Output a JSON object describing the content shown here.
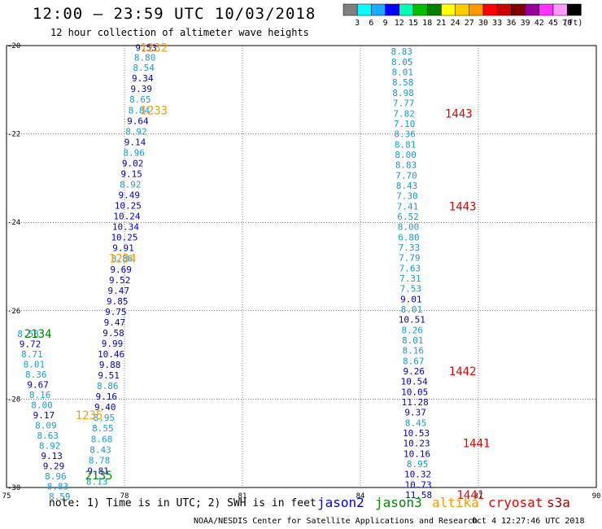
{
  "title": "12:00 — 23:59 UTC 10/03/2018",
  "subtitle": "12 hour collection of altimeter wave heights",
  "legend": {
    "labels": [
      "3",
      "6",
      "9",
      "12",
      "15",
      "18",
      "21",
      "24",
      "27",
      "30",
      "33",
      "36",
      "39",
      "42",
      "45",
      "70"
    ],
    "unit": "(ft)",
    "colors": [
      "#7f7f7f",
      "#00ffff",
      "#1aa9ff",
      "#0000ff",
      "#00ffb0",
      "#00c000",
      "#008000",
      "#ffff00",
      "#ffcc00",
      "#ff9900",
      "#ff0000",
      "#cc0000",
      "#800000",
      "#990099",
      "#ff33ff",
      "#ff99ff",
      "#000000"
    ]
  },
  "note": "note: 1) Time is in UTC; 2) SWH is in feet",
  "satellites": [
    {
      "name": "jason2",
      "color": "#0000ee"
    },
    {
      "name": "jason3",
      "color": "#008800"
    },
    {
      "name": "altika",
      "color": "#ff9900"
    },
    {
      "name": "cryosat",
      "color": "#ee0000"
    },
    {
      "name": "s3a",
      "color": "#aa0000"
    }
  ],
  "credit": "NOAA/NESDIS Center for Satellite Applications and Research",
  "credit_time": "Oct  4 12:27:46 UTC 2018",
  "chart_data": {
    "type": "scatter",
    "xlim": [
      75,
      90
    ],
    "ylim": [
      -30,
      -20
    ],
    "xticks": [
      75,
      78,
      81,
      84,
      87,
      90
    ],
    "yticks": [
      -20,
      -22,
      -24,
      -26,
      -28,
      -30
    ],
    "xtick_labels": [
      "75",
      "78",
      "81",
      "84",
      "87",
      "90"
    ],
    "ytick_labels": [
      "-20",
      "-22",
      "-24",
      "-26",
      "-28",
      "-30"
    ],
    "grid": true,
    "points": [
      {
        "x": 78.55,
        "y": -20.05,
        "v": "9.53",
        "c": "#0000cc"
      },
      {
        "x": 78.52,
        "y": -20.27,
        "v": "8.80",
        "c": "#1a9ad6"
      },
      {
        "x": 78.49,
        "y": -20.5,
        "v": "8.54",
        "c": "#1a9ad6"
      },
      {
        "x": 78.46,
        "y": -20.74,
        "v": "9.34",
        "c": "#0000cc"
      },
      {
        "x": 78.43,
        "y": -20.98,
        "v": "9.39",
        "c": "#0000cc"
      },
      {
        "x": 78.4,
        "y": -21.22,
        "v": "8.65",
        "c": "#1a9ad6"
      },
      {
        "x": 78.37,
        "y": -21.46,
        "v": "8.84",
        "c": "#1a9ad6"
      },
      {
        "x": 78.34,
        "y": -21.7,
        "v": "9.64",
        "c": "#0000cc"
      },
      {
        "x": 78.3,
        "y": -21.94,
        "v": "8.92",
        "c": "#1a9ad6"
      },
      {
        "x": 78.27,
        "y": -22.18,
        "v": "9.14",
        "c": "#0000cc"
      },
      {
        "x": 78.24,
        "y": -22.42,
        "v": "8.96",
        "c": "#1a9ad6"
      },
      {
        "x": 78.21,
        "y": -22.66,
        "v": "9.02",
        "c": "#0000cc"
      },
      {
        "x": 78.18,
        "y": -22.9,
        "v": "9.15",
        "c": "#0000cc"
      },
      {
        "x": 78.15,
        "y": -23.14,
        "v": "8.92",
        "c": "#1a9ad6"
      },
      {
        "x": 78.12,
        "y": -23.38,
        "v": "9.49",
        "c": "#0000cc"
      },
      {
        "x": 78.09,
        "y": -23.62,
        "v": "10.25",
        "c": "#0000cc"
      },
      {
        "x": 78.06,
        "y": -23.86,
        "v": "10.24",
        "c": "#0000cc"
      },
      {
        "x": 78.03,
        "y": -24.1,
        "v": "10.34",
        "c": "#0000cc"
      },
      {
        "x": 78.0,
        "y": -24.34,
        "v": "10.25",
        "c": "#0000cc"
      },
      {
        "x": 77.97,
        "y": -24.58,
        "v": "9.91",
        "c": "#0000cc"
      },
      {
        "x": 77.94,
        "y": -24.82,
        "v": "8.86",
        "c": "#1a9ad6"
      },
      {
        "x": 77.91,
        "y": -25.06,
        "v": "9.69",
        "c": "#0000cc"
      },
      {
        "x": 77.88,
        "y": -25.3,
        "v": "9.52",
        "c": "#0000cc"
      },
      {
        "x": 77.85,
        "y": -25.54,
        "v": "9.47",
        "c": "#0000cc"
      },
      {
        "x": 77.82,
        "y": -25.78,
        "v": "9.85",
        "c": "#0000cc"
      },
      {
        "x": 77.78,
        "y": -26.02,
        "v": "9.75",
        "c": "#0000cc"
      },
      {
        "x": 77.75,
        "y": -26.26,
        "v": "9.47",
        "c": "#0000cc"
      },
      {
        "x": 77.72,
        "y": -26.5,
        "v": "9.58",
        "c": "#0000cc"
      },
      {
        "x": 77.69,
        "y": -26.74,
        "v": "9.99",
        "c": "#0000cc"
      },
      {
        "x": 77.66,
        "y": -26.98,
        "v": "10.46",
        "c": "#0000cc"
      },
      {
        "x": 77.63,
        "y": -27.22,
        "v": "9.88",
        "c": "#0000cc"
      },
      {
        "x": 77.6,
        "y": -27.46,
        "v": "9.51",
        "c": "#0000cc"
      },
      {
        "x": 77.57,
        "y": -27.7,
        "v": "8.86",
        "c": "#1a9ad6"
      },
      {
        "x": 77.54,
        "y": -27.94,
        "v": "9.16",
        "c": "#0000cc"
      },
      {
        "x": 77.51,
        "y": -28.18,
        "v": "9.40",
        "c": "#0000cc"
      },
      {
        "x": 77.48,
        "y": -28.42,
        "v": "8.95",
        "c": "#1a9ad6"
      },
      {
        "x": 77.45,
        "y": -28.66,
        "v": "8.55",
        "c": "#1a9ad6"
      },
      {
        "x": 77.42,
        "y": -28.9,
        "v": "8.68",
        "c": "#1a9ad6"
      },
      {
        "x": 77.39,
        "y": -29.14,
        "v": "8.43",
        "c": "#1a9ad6"
      },
      {
        "x": 77.36,
        "y": -29.38,
        "v": "8.78",
        "c": "#1a9ad6"
      },
      {
        "x": 77.33,
        "y": -29.62,
        "v": "9.81",
        "c": "#0000cc"
      },
      {
        "x": 77.3,
        "y": -29.86,
        "v": "8.13",
        "c": "#1a9ad6"
      },
      {
        "x": 75.55,
        "y": -26.52,
        "v": "8.58",
        "c": "#1a9ad6"
      },
      {
        "x": 75.6,
        "y": -26.75,
        "v": "9.72",
        "c": "#0000cc"
      },
      {
        "x": 75.65,
        "y": -26.98,
        "v": "8.71",
        "c": "#1a9ad6"
      },
      {
        "x": 75.7,
        "y": -27.21,
        "v": "8.01",
        "c": "#1a9ad6"
      },
      {
        "x": 75.75,
        "y": -27.44,
        "v": "8.36",
        "c": "#1a9ad6"
      },
      {
        "x": 75.8,
        "y": -27.67,
        "v": "9.67",
        "c": "#0000cc"
      },
      {
        "x": 75.85,
        "y": -27.9,
        "v": "8.16",
        "c": "#1a9ad6"
      },
      {
        "x": 75.9,
        "y": -28.13,
        "v": "8.00",
        "c": "#1a9ad6"
      },
      {
        "x": 75.95,
        "y": -28.36,
        "v": "9.17",
        "c": "#0000cc"
      },
      {
        "x": 76.0,
        "y": -28.59,
        "v": "8.09",
        "c": "#1a9ad6"
      },
      {
        "x": 76.05,
        "y": -28.82,
        "v": "8.63",
        "c": "#1a9ad6"
      },
      {
        "x": 76.1,
        "y": -29.05,
        "v": "8.92",
        "c": "#1a9ad6"
      },
      {
        "x": 76.15,
        "y": -29.28,
        "v": "9.13",
        "c": "#0000cc"
      },
      {
        "x": 76.2,
        "y": -29.51,
        "v": "9.29",
        "c": "#0000cc"
      },
      {
        "x": 76.25,
        "y": -29.74,
        "v": "8.96",
        "c": "#1a9ad6"
      },
      {
        "x": 76.3,
        "y": -29.97,
        "v": "8.83",
        "c": "#1a9ad6"
      },
      {
        "x": 76.35,
        "y": -30.2,
        "v": "8.59",
        "c": "#1a9ad6"
      },
      {
        "x": 85.05,
        "y": -20.13,
        "v": "8.83",
        "c": "#1a9ad6"
      },
      {
        "x": 85.06,
        "y": -20.37,
        "v": "8.05",
        "c": "#1a9ad6"
      },
      {
        "x": 85.07,
        "y": -20.6,
        "v": "8.01",
        "c": "#1a9ad6"
      },
      {
        "x": 85.08,
        "y": -20.83,
        "v": "8.58",
        "c": "#1a9ad6"
      },
      {
        "x": 85.09,
        "y": -21.07,
        "v": "8.98",
        "c": "#1a9ad6"
      },
      {
        "x": 85.1,
        "y": -21.3,
        "v": "7.77",
        "c": "#1a9ad6"
      },
      {
        "x": 85.11,
        "y": -21.54,
        "v": "7.82",
        "c": "#1a9ad6"
      },
      {
        "x": 85.12,
        "y": -21.77,
        "v": "7.10",
        "c": "#1a9ad6"
      },
      {
        "x": 85.13,
        "y": -22.0,
        "v": "8.36",
        "c": "#1a9ad6"
      },
      {
        "x": 85.14,
        "y": -22.24,
        "v": "8.81",
        "c": "#1a9ad6"
      },
      {
        "x": 85.15,
        "y": -22.47,
        "v": "8.00",
        "c": "#1a9ad6"
      },
      {
        "x": 85.16,
        "y": -22.7,
        "v": "8.83",
        "c": "#1a9ad6"
      },
      {
        "x": 85.17,
        "y": -22.94,
        "v": "7.70",
        "c": "#1a9ad6"
      },
      {
        "x": 85.18,
        "y": -23.17,
        "v": "8.43",
        "c": "#1a9ad6"
      },
      {
        "x": 85.19,
        "y": -23.4,
        "v": "7.30",
        "c": "#1a9ad6"
      },
      {
        "x": 85.2,
        "y": -23.64,
        "v": "7.41",
        "c": "#1a9ad6"
      },
      {
        "x": 85.21,
        "y": -23.87,
        "v": "6.52",
        "c": "#1a9ad6"
      },
      {
        "x": 85.22,
        "y": -24.1,
        "v": "8.00",
        "c": "#1a9ad6"
      },
      {
        "x": 85.23,
        "y": -24.34,
        "v": "6.80",
        "c": "#1a9ad6"
      },
      {
        "x": 85.24,
        "y": -24.57,
        "v": "7.33",
        "c": "#1a9ad6"
      },
      {
        "x": 85.25,
        "y": -24.8,
        "v": "7.79",
        "c": "#1a9ad6"
      },
      {
        "x": 85.26,
        "y": -25.04,
        "v": "7.63",
        "c": "#1a9ad6"
      },
      {
        "x": 85.27,
        "y": -25.27,
        "v": "7.31",
        "c": "#1a9ad6"
      },
      {
        "x": 85.28,
        "y": -25.5,
        "v": "7.53",
        "c": "#1a9ad6"
      },
      {
        "x": 85.29,
        "y": -25.74,
        "v": "9.01",
        "c": "#0000cc"
      },
      {
        "x": 85.3,
        "y": -25.97,
        "v": "8.01",
        "c": "#1a9ad6"
      },
      {
        "x": 85.31,
        "y": -26.2,
        "v": "10.51",
        "c": "#0000cc"
      },
      {
        "x": 85.32,
        "y": -26.44,
        "v": "8.26",
        "c": "#1a9ad6"
      },
      {
        "x": 85.33,
        "y": -26.67,
        "v": "8.01",
        "c": "#1a9ad6"
      },
      {
        "x": 85.34,
        "y": -26.9,
        "v": "8.16",
        "c": "#1a9ad6"
      },
      {
        "x": 85.35,
        "y": -27.14,
        "v": "8.67",
        "c": "#1a9ad6"
      },
      {
        "x": 85.36,
        "y": -27.37,
        "v": "9.26",
        "c": "#0000cc"
      },
      {
        "x": 85.37,
        "y": -27.6,
        "v": "10.54",
        "c": "#0000cc"
      },
      {
        "x": 85.38,
        "y": -27.84,
        "v": "10.05",
        "c": "#0000cc"
      },
      {
        "x": 85.39,
        "y": -28.07,
        "v": "11.28",
        "c": "#0000cc"
      },
      {
        "x": 85.4,
        "y": -28.3,
        "v": "9.37",
        "c": "#0000cc"
      },
      {
        "x": 85.41,
        "y": -28.54,
        "v": "8.45",
        "c": "#1a9ad6"
      },
      {
        "x": 85.42,
        "y": -28.77,
        "v": "10.53",
        "c": "#0000cc"
      },
      {
        "x": 85.43,
        "y": -29.0,
        "v": "10.23",
        "c": "#0000cc"
      },
      {
        "x": 85.44,
        "y": -29.24,
        "v": "10.16",
        "c": "#0000cc"
      },
      {
        "x": 85.45,
        "y": -29.47,
        "v": "8.95",
        "c": "#1a9ad6"
      },
      {
        "x": 85.46,
        "y": -29.7,
        "v": "10.32",
        "c": "#0000cc"
      },
      {
        "x": 85.47,
        "y": -29.94,
        "v": "10.73",
        "c": "#0000cc"
      },
      {
        "x": 85.48,
        "y": -30.17,
        "v": "11.58",
        "c": "#0000cc"
      }
    ],
    "annotations": [
      {
        "x": 78.75,
        "y": -20.05,
        "text": "1232",
        "c": "#ff9900"
      },
      {
        "x": 78.75,
        "y": -21.46,
        "text": "1233",
        "c": "#ff9900"
      },
      {
        "x": 77.95,
        "y": -24.82,
        "text": "1234",
        "c": "#ff9900"
      },
      {
        "x": 77.1,
        "y": -28.36,
        "text": "1235",
        "c": "#ff9900"
      },
      {
        "x": 75.8,
        "y": -26.52,
        "text": "2134",
        "c": "#008800"
      },
      {
        "x": 77.35,
        "y": -29.72,
        "text": "2135",
        "c": "#008800"
      },
      {
        "x": 86.5,
        "y": -21.54,
        "text": "1443",
        "c": "#ee0000"
      },
      {
        "x": 86.6,
        "y": -23.64,
        "text": "1443",
        "c": "#ee0000"
      },
      {
        "x": 86.6,
        "y": -27.37,
        "text": "1442",
        "c": "#ee0000"
      },
      {
        "x": 86.95,
        "y": -29.0,
        "text": "1441",
        "c": "#ee0000"
      },
      {
        "x": 86.8,
        "y": -30.17,
        "text": "1441",
        "c": "#ee0000"
      }
    ]
  }
}
